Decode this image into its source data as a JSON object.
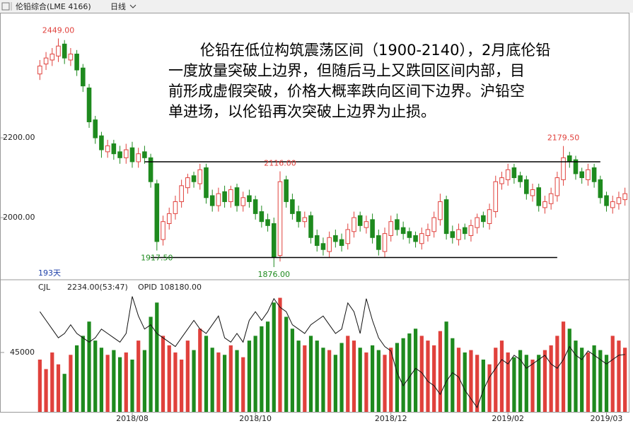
{
  "toolbar": {
    "symbol": "伦铅综合(LME 4166)",
    "period": "日线"
  },
  "chart_data": {
    "type": "candlestick",
    "note": [
      "伦铅在低位构筑震荡区间（1900-2140），2月底伦铅",
      "一度放量突破上边界，但随后马上又跌回区间内部，目",
      "前形成虚假突破，价格大概率跌向区间下边界。沪铅空",
      "单进场，以伦铅再次突破上边界为止损。"
    ],
    "days_label": "193天",
    "up_color": "#e0413c",
    "down_color": "#1e8a1e",
    "ylim": [
      1846,
      2510
    ],
    "yticks": [
      {
        "value": 2000,
        "label": "2000.00"
      },
      {
        "value": 2200,
        "label": "2200.00"
      }
    ],
    "xticks": [
      {
        "value": 15,
        "label": "2018/08"
      },
      {
        "value": 35,
        "label": "2018/10"
      },
      {
        "value": 57,
        "label": "2018/12"
      },
      {
        "value": 76,
        "label": "2019/02"
      },
      {
        "value": 92,
        "label": "2019/03"
      }
    ],
    "open": [
      2360,
      2385,
      2395,
      2405,
      2435,
      2395,
      2410,
      2375,
      2325,
      2245,
      2205,
      2165,
      2185,
      2165,
      2150,
      2175,
      2140,
      2165,
      2150,
      2085,
      1945,
      1985,
      2010,
      2040,
      2075,
      2105,
      2085,
      2125,
      2055,
      2030,
      2065,
      2040,
      2075,
      2030,
      2055,
      2045,
      2015,
      1995,
      1985,
      1905,
      2095,
      2045,
      2015,
      1990,
      2005,
      1955,
      1935,
      1915,
      1955,
      1945,
      1935,
      1965,
      2005,
      1975,
      1995,
      1955,
      1915,
      1955,
      1995,
      1975,
      1965,
      1955,
      1935,
      1955,
      1965,
      1995,
      2045,
      1965,
      1945,
      1975,
      1955,
      1975,
      2005,
      1985,
      2015,
      2085,
      2095,
      2125,
      2105,
      2095,
      2055,
      2075,
      2025,
      2035,
      2055,
      2095,
      2155,
      2145,
      2115,
      2095,
      2125,
      2095,
      2055,
      2025,
      2035,
      2045
    ],
    "high": [
      2395,
      2415,
      2425,
      2449,
      2445,
      2425,
      2420,
      2385,
      2335,
      2255,
      2215,
      2195,
      2195,
      2180,
      2185,
      2190,
      2175,
      2180,
      2160,
      2095,
      2005,
      2025,
      2055,
      2095,
      2110,
      2115,
      2135,
      2135,
      2070,
      2075,
      2080,
      2080,
      2085,
      2065,
      2070,
      2055,
      2030,
      2010,
      2000,
      2116,
      2105,
      2060,
      2030,
      2015,
      2015,
      1970,
      1950,
      1965,
      1970,
      1960,
      1985,
      2015,
      2015,
      2005,
      2010,
      1970,
      1975,
      2005,
      2010,
      1990,
      1975,
      1965,
      1975,
      1985,
      2015,
      2060,
      2055,
      1980,
      1985,
      1985,
      1995,
      2010,
      2015,
      2035,
      2105,
      2115,
      2135,
      2135,
      2115,
      2105,
      2085,
      2085,
      2055,
      2075,
      2115,
      2179.5,
      2165,
      2155,
      2125,
      2135,
      2135,
      2105,
      2065,
      2055,
      2065,
      2075
    ],
    "low": [
      2345,
      2370,
      2380,
      2390,
      2385,
      2380,
      2355,
      2315,
      2225,
      2185,
      2150,
      2150,
      2145,
      2135,
      2135,
      2125,
      2125,
      2135,
      2075,
      1917.5,
      1930,
      1970,
      1995,
      2025,
      2060,
      2075,
      2070,
      2035,
      2015,
      2015,
      2025,
      2025,
      2015,
      2015,
      2025,
      1995,
      1975,
      1965,
      1876,
      1890,
      2025,
      1995,
      1975,
      1975,
      1935,
      1915,
      1905,
      1900,
      1925,
      1915,
      1920,
      1950,
      1965,
      1960,
      1935,
      1905,
      1900,
      1940,
      1955,
      1945,
      1935,
      1925,
      1920,
      1940,
      1950,
      1980,
      1945,
      1935,
      1930,
      1945,
      1940,
      1960,
      1975,
      1970,
      2000,
      2070,
      2080,
      2085,
      2075,
      2045,
      2040,
      2015,
      2010,
      2020,
      2040,
      2080,
      2125,
      2095,
      2085,
      2080,
      2075,
      2035,
      2015,
      2010,
      2020,
      2030
    ],
    "close": [
      2380,
      2400,
      2410,
      2430,
      2400,
      2410,
      2370,
      2330,
      2240,
      2200,
      2170,
      2180,
      2160,
      2150,
      2170,
      2140,
      2160,
      2150,
      2090,
      1940,
      1990,
      2010,
      2040,
      2080,
      2100,
      2090,
      2120,
      2050,
      2030,
      2060,
      2040,
      2070,
      2030,
      2050,
      2040,
      2010,
      1990,
      1980,
      1900,
      2090,
      2040,
      2010,
      1990,
      2000,
      1950,
      1930,
      1920,
      1950,
      1940,
      1930,
      1970,
      2000,
      1980,
      1990,
      1950,
      1920,
      1960,
      1990,
      1970,
      1960,
      1950,
      1940,
      1960,
      1970,
      2000,
      2040,
      1960,
      1950,
      1970,
      1960,
      1980,
      2000,
      1990,
      2020,
      2090,
      2100,
      2120,
      2100,
      2090,
      2060,
      2070,
      2030,
      2040,
      2060,
      2100,
      2150,
      2140,
      2110,
      2100,
      2120,
      2090,
      2050,
      2030,
      2040,
      2050,
      2060
    ],
    "price_labels": [
      {
        "value": 2449,
        "label": "2449.00",
        "index": 3
      },
      {
        "value": 2116,
        "label": "2116.00",
        "index": 39
      },
      {
        "value": 2179.5,
        "label": "2179.50",
        "index": 85
      },
      {
        "value": 1917.5,
        "label": "1917.50",
        "index": 19
      },
      {
        "value": 1876,
        "label": "1876.00",
        "index": 38
      }
    ],
    "hlines": [
      {
        "value": 2140,
        "from": 17,
        "to": 91
      },
      {
        "value": 1900,
        "from": 18,
        "to": 84
      }
    ],
    "indicator_header": [
      "CJL",
      "2234.00(53:47)",
      "OPID 108180.00"
    ],
    "vlim": [
      20000,
      75000
    ],
    "vticks": [
      45000
    ],
    "volume": [
      42000,
      38000,
      45000,
      40000,
      36000,
      44000,
      48000,
      52000,
      58000,
      50000,
      47000,
      44000,
      46000,
      43000,
      45000,
      42000,
      50000,
      46000,
      60000,
      66000,
      52000,
      48000,
      45000,
      42000,
      50000,
      46000,
      55000,
      52000,
      47000,
      45000,
      44000,
      48000,
      46000,
      43000,
      50000,
      52000,
      56000,
      58000,
      66000,
      68000,
      60000,
      55000,
      50000,
      48000,
      52000,
      50000,
      47000,
      46000,
      44000,
      49000,
      52000,
      50000,
      47000,
      45000,
      48000,
      46000,
      44000,
      47000,
      49000,
      51000,
      53000,
      55000,
      52000,
      50000,
      48000,
      54000,
      58000,
      51000,
      47000,
      45000,
      46000,
      44000,
      42000,
      40000,
      47000,
      50000,
      45000,
      43000,
      46000,
      44000,
      42000,
      44000,
      46000,
      48000,
      52000,
      58000,
      55000,
      50000,
      47000,
      45000,
      48000,
      46000,
      44000,
      52000,
      50000,
      47000
    ],
    "y2lim": [
      95000,
      125000
    ],
    "opid": [
      118000,
      116000,
      114000,
      112000,
      113000,
      115000,
      113000,
      112000,
      111000,
      112000,
      114000,
      113000,
      112000,
      111000,
      113000,
      121500,
      117000,
      114000,
      115000,
      113000,
      112000,
      111000,
      110000,
      112000,
      114000,
      116000,
      114000,
      113000,
      115000,
      117000,
      112000,
      111000,
      113000,
      111000,
      116000,
      118000,
      116000,
      118000,
      121000,
      119000,
      118000,
      115000,
      114000,
      113000,
      115000,
      116000,
      117000,
      115000,
      113000,
      114000,
      120000,
      118000,
      113000,
      121000,
      116000,
      112000,
      110000,
      109000,
      104000,
      101000,
      103000,
      105000,
      104000,
      102000,
      101000,
      99000,
      102000,
      104000,
      103000,
      100000,
      98000,
      96000,
      100000,
      103000,
      105000,
      107000,
      106000,
      108000,
      107000,
      105000,
      106000,
      107000,
      108000,
      106000,
      105000,
      107000,
      110000,
      108000,
      107000,
      109000,
      108000,
      107000,
      106000,
      107000,
      108000,
      108180
    ],
    "opid_color": "#111111"
  }
}
